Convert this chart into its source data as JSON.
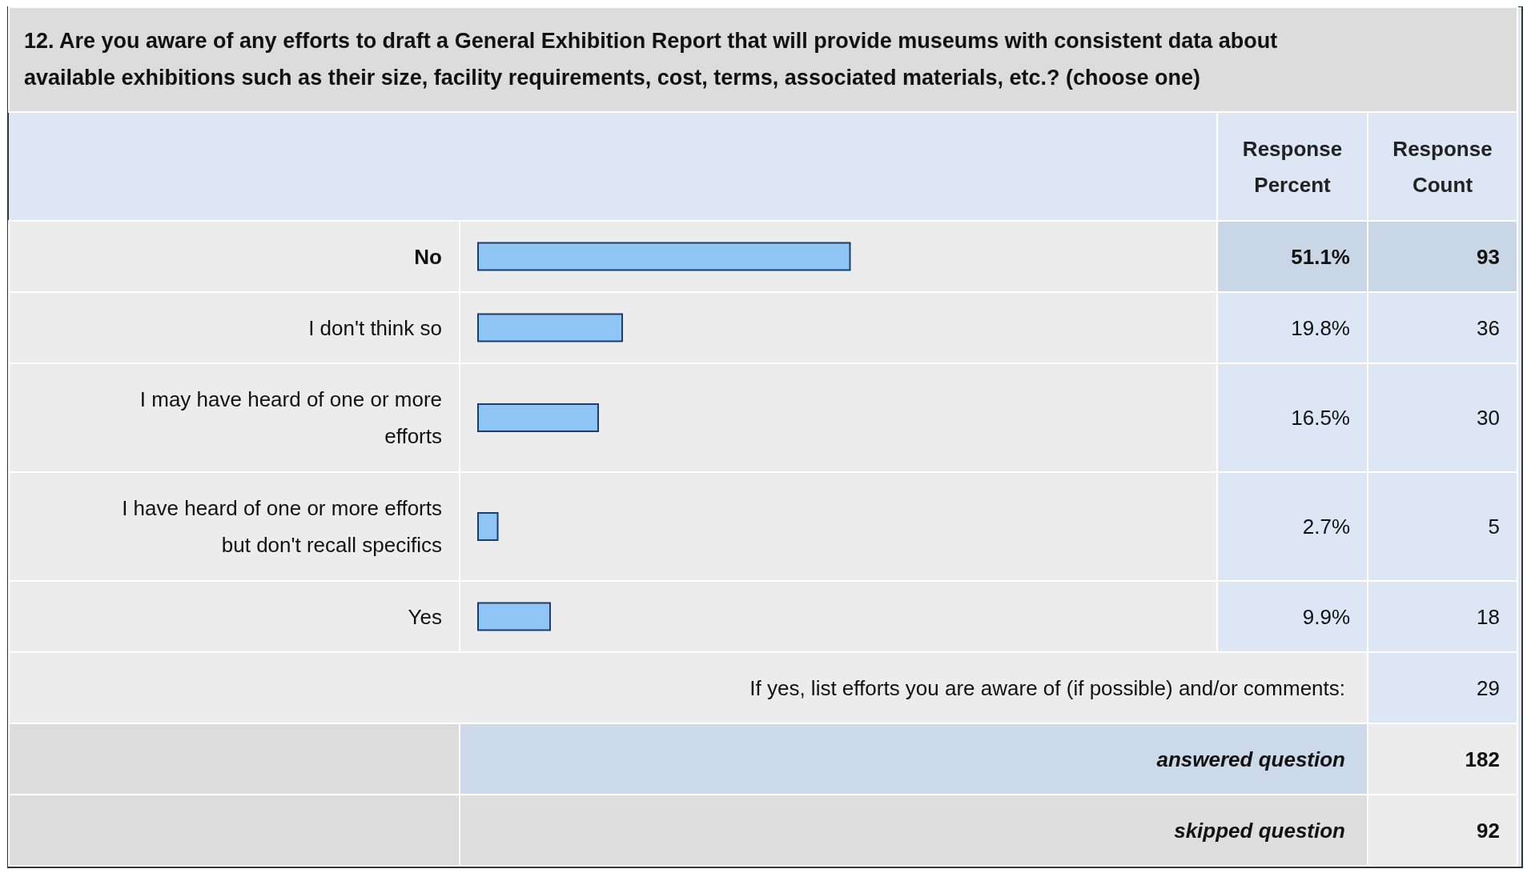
{
  "chart_data": {
    "type": "bar",
    "orientation": "horizontal",
    "title": "12. Are you aware of any efforts to draft a General Exhibition Report that will provide museums with consistent data about available exhibitions such as their size, facility requirements, cost, terms, associated materials, etc.? (choose one)",
    "categories": [
      "No",
      "I don't think so",
      "I may have heard of one or more efforts",
      "I have heard of one or more efforts but don't recall specifics",
      "Yes"
    ],
    "series": [
      {
        "color": "#8ec5f5",
        "values": [
          51.1,
          19.8,
          16.5,
          2.7,
          9.9
        ],
        "value_labels": [
          "51.1%",
          "19.8%",
          "16.5%",
          "2.7%",
          "9.9%"
        ]
      }
    ],
    "annotations": [
      "Response Percent",
      "Response Count",
      "93",
      "36",
      "30",
      "5",
      "18",
      "If yes, list efforts you are aware of (if possible) and/or comments:",
      "29",
      "answered question",
      "182",
      "skipped question",
      "92"
    ]
  }
}
